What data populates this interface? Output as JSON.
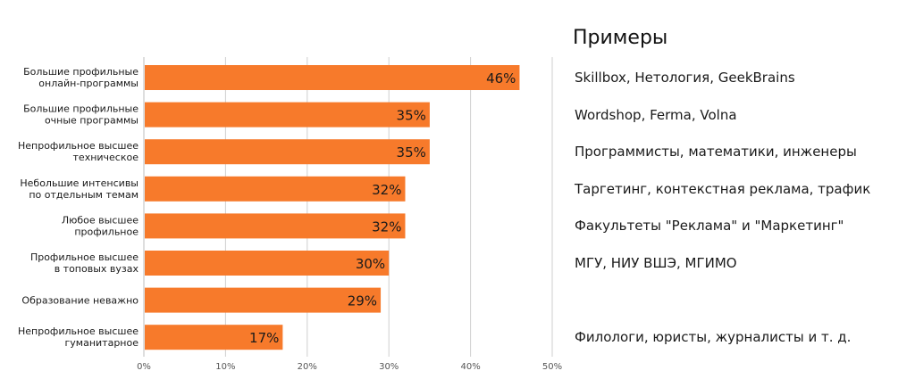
{
  "colors": {
    "bar": "#f77a2b",
    "grid": "#cfcfcf",
    "axis_text": "#555555",
    "text": "#1a1a1a"
  },
  "chart_data": {
    "type": "bar",
    "orientation": "horizontal",
    "title": "",
    "xlabel": "",
    "ylabel": "",
    "xlim": [
      0,
      50
    ],
    "ticks": [
      0,
      10,
      20,
      30,
      40,
      50
    ],
    "tick_labels": [
      "0%",
      "10%",
      "20%",
      "30%",
      "40%",
      "50%"
    ],
    "grid": true,
    "categories": [
      [
        "Большие профильные",
        "онлайн-программы"
      ],
      [
        "Большие профильные",
        "очные программы"
      ],
      [
        "Непрофильное высшее",
        "техническое"
      ],
      [
        "Небольшие интенсивы",
        "по отдельным темам"
      ],
      [
        "Любое высшее",
        "профильное"
      ],
      [
        "Профильное высшее",
        "в топовых вузах"
      ],
      [
        "Образование неважно"
      ],
      [
        "Непрофильное высшее",
        "гуманитарное"
      ]
    ],
    "values": [
      46,
      35,
      35,
      32,
      32,
      30,
      29,
      17
    ],
    "value_labels": [
      "46%",
      "35%",
      "35%",
      "32%",
      "32%",
      "30%",
      "29%",
      "17%"
    ]
  },
  "examples": {
    "title": "Примеры",
    "items": [
      "Skillbox, Нетология, GeekBrains",
      "Wordshop, Ferma, Volna",
      "Программисты, математики, инженеры",
      "Таргетинг, контекстная реклама, трафик",
      "Факультеты \"Реклама\" и \"Маркетинг\"",
      "МГУ, НИУ ВШЭ, МГИМО",
      "",
      "Филологи, юристы, журналисты и т. д."
    ]
  }
}
